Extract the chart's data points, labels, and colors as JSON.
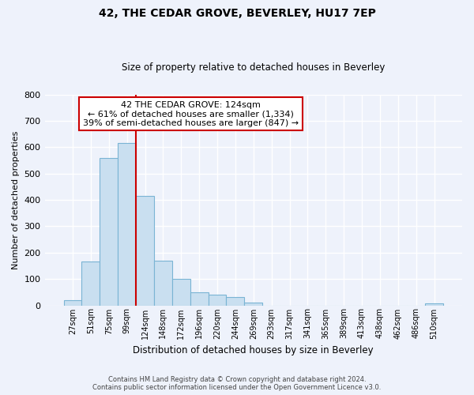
{
  "title": "42, THE CEDAR GROVE, BEVERLEY, HU17 7EP",
  "subtitle": "Size of property relative to detached houses in Beverley",
  "xlabel": "Distribution of detached houses by size in Beverley",
  "ylabel": "Number of detached properties",
  "bar_labels": [
    "27sqm",
    "51sqm",
    "75sqm",
    "99sqm",
    "124sqm",
    "148sqm",
    "172sqm",
    "196sqm",
    "220sqm",
    "244sqm",
    "269sqm",
    "293sqm",
    "317sqm",
    "341sqm",
    "365sqm",
    "389sqm",
    "413sqm",
    "438sqm",
    "462sqm",
    "486sqm",
    "510sqm"
  ],
  "bar_heights": [
    20,
    165,
    560,
    615,
    415,
    170,
    100,
    50,
    40,
    33,
    10,
    0,
    0,
    0,
    0,
    0,
    0,
    0,
    0,
    0,
    8
  ],
  "bar_color": "#c9dff0",
  "bar_edge_color": "#7ab4d4",
  "vline_x_index": 3,
  "vline_color": "#cc0000",
  "ylim": [
    0,
    800
  ],
  "yticks": [
    0,
    100,
    200,
    300,
    400,
    500,
    600,
    700,
    800
  ],
  "annotation_title": "42 THE CEDAR GROVE: 124sqm",
  "annotation_line1": "← 61% of detached houses are smaller (1,334)",
  "annotation_line2": "39% of semi-detached houses are larger (847) →",
  "annotation_box_color": "#ffffff",
  "annotation_box_edge": "#cc0000",
  "footer_line1": "Contains HM Land Registry data © Crown copyright and database right 2024.",
  "footer_line2": "Contains public sector information licensed under the Open Government Licence v3.0.",
  "background_color": "#eef2fb",
  "grid_color": "#ffffff"
}
